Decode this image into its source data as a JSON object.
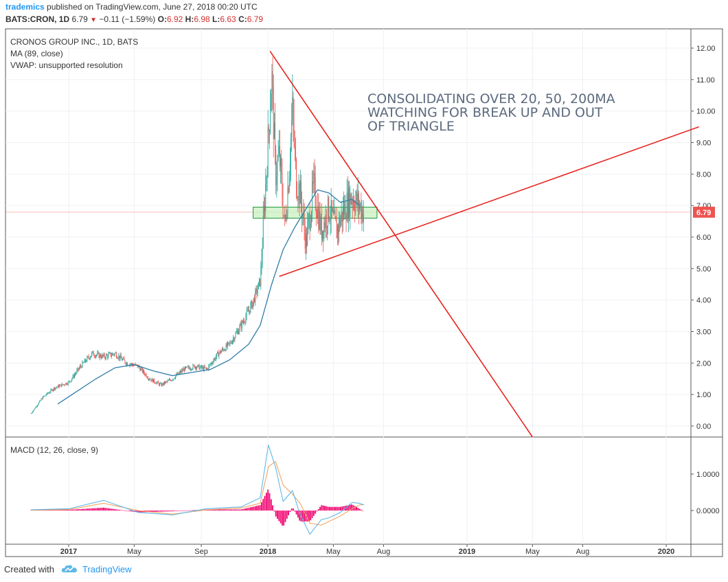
{
  "header": {
    "author": "trademics",
    "published_text": " published on TradingView.com, June 27, 2018 00:20 UTC",
    "symbol": "BATS:CRON, 1D",
    "last": "6.79",
    "change": "−0.11 (−1.59%)",
    "open_label": "O:",
    "open": "6.92",
    "high_label": "H:",
    "high": "6.98",
    "low_label": "L:",
    "low": "6.63",
    "close_label": "C:",
    "close": "6.79"
  },
  "legend": {
    "title": "CRONOS GROUP INC., 1D, BATS",
    "ma": "MA (89, close)",
    "vwap": "VWAP: unsupported resolution",
    "macd": "MACD (12, 26, close, 9)"
  },
  "annotation": {
    "lines": [
      "CONSOLIDATING OVER 20, 50, 200MA",
      "WATCHING FOR BREAK UP AND OUT",
      "OF TRIANGLE"
    ]
  },
  "price_tag": "6.79",
  "footer": {
    "created_with": "Created with",
    "brand": "TradingView"
  },
  "colors": {
    "up": "#26a69a",
    "down": "#ef5350",
    "ma": "#2f7ca8",
    "trendline": "#e8221c",
    "macd_line": "#5fb8e8",
    "signal_line": "#f4a460",
    "histogram": "#f0006e",
    "zone_fill": "#c8f0c0",
    "zone_stroke": "#1e9b3a",
    "price_tag": "#ef5350"
  },
  "chart_data": [
    {
      "type": "line",
      "title": "CRONOS GROUP INC., 1D, BATS",
      "x_axis": {
        "ticks": [
          "2017",
          "May",
          "Sep",
          "2018",
          "May",
          "Aug",
          "2019",
          "May",
          "Aug",
          "2020"
        ],
        "bold_ticks": [
          "2017",
          "2018",
          "2019",
          "2020"
        ]
      },
      "y_axis": {
        "ticks": [
          "0.00",
          "1.00",
          "2.00",
          "3.00",
          "4.00",
          "5.00",
          "6.00",
          "7.00",
          "8.00",
          "9.00",
          "10.00",
          "11.00",
          "12.00"
        ],
        "ylim": [
          -0.3,
          12.4
        ]
      },
      "series": [
        {
          "name": "Price",
          "x": [
            "2016-10-24",
            "2016-11-14",
            "2016-12-05",
            "2017-01-02",
            "2017-01-23",
            "2017-02-13",
            "2017-03-06",
            "2017-03-27",
            "2017-04-17",
            "2017-05-08",
            "2017-05-29",
            "2017-06-19",
            "2017-07-10",
            "2017-07-31",
            "2017-08-21",
            "2017-09-11",
            "2017-10-02",
            "2017-10-23",
            "2017-11-13",
            "2017-12-04",
            "2017-12-18",
            "2018-01-02",
            "2018-01-08",
            "2018-01-15",
            "2018-01-22",
            "2018-02-01",
            "2018-02-08",
            "2018-02-15",
            "2018-02-22",
            "2018-03-01",
            "2018-03-12",
            "2018-03-26",
            "2018-04-09",
            "2018-04-23",
            "2018-05-07",
            "2018-05-21",
            "2018-06-04",
            "2018-06-18",
            "2018-06-26"
          ],
          "values": [
            0.4,
            0.9,
            1.2,
            1.4,
            1.9,
            2.3,
            2.2,
            2.3,
            2.0,
            1.9,
            1.5,
            1.3,
            1.5,
            1.8,
            1.9,
            1.8,
            2.3,
            2.6,
            3.2,
            3.9,
            4.6,
            9.2,
            11.2,
            8.0,
            8.6,
            6.3,
            7.9,
            10.0,
            7.8,
            7.4,
            5.8,
            7.6,
            6.2,
            6.9,
            6.2,
            6.9,
            7.3,
            7.0,
            6.79
          ]
        },
        {
          "name": "MA (89, close)",
          "x": [
            "2016-12-12",
            "2017-01-16",
            "2017-02-20",
            "2017-03-27",
            "2017-05-01",
            "2017-06-05",
            "2017-07-10",
            "2017-08-14",
            "2017-09-18",
            "2017-10-23",
            "2017-11-27",
            "2017-12-18",
            "2018-01-08",
            "2018-01-29",
            "2018-02-19",
            "2018-03-12",
            "2018-04-02",
            "2018-04-23",
            "2018-05-14",
            "2018-06-04",
            "2018-06-18"
          ],
          "values": [
            0.7,
            1.1,
            1.5,
            1.85,
            1.95,
            1.75,
            1.6,
            1.7,
            1.8,
            2.1,
            2.6,
            3.2,
            4.5,
            5.6,
            6.3,
            6.9,
            7.5,
            7.4,
            7.1,
            7.2,
            7.0
          ]
        }
      ],
      "annotations": {
        "support_zone": {
          "from": "2017-12-05",
          "to": "2018-07-20",
          "low": 6.6,
          "high": 6.95
        },
        "descending_trendline": {
          "from": [
            "2018-01-05",
            11.9
          ],
          "to": [
            "2019-05-01",
            -0.35
          ]
        },
        "ascending_trendline": {
          "from": [
            "2018-01-22",
            4.75
          ],
          "to": [
            "2020-03-01",
            9.5
          ]
        },
        "last_price": 6.79
      }
    },
    {
      "type": "line",
      "title": "MACD (12, 26, close, 9)",
      "y_axis": {
        "ticks": [
          "0.0000",
          "1.0000"
        ]
      },
      "series": [
        {
          "name": "MACD",
          "x": [
            "2016-10-24",
            "2017-01-02",
            "2017-03-06",
            "2017-05-08",
            "2017-07-10",
            "2017-09-11",
            "2017-11-13",
            "2017-12-18",
            "2018-01-02",
            "2018-01-15",
            "2018-01-29",
            "2018-02-15",
            "2018-03-01",
            "2018-03-19",
            "2018-04-09",
            "2018-04-23",
            "2018-05-14",
            "2018-06-04",
            "2018-06-18",
            "2018-06-26"
          ],
          "values": [
            0.02,
            0.05,
            0.28,
            -0.05,
            -0.12,
            0.05,
            0.1,
            0.35,
            1.8,
            1.2,
            0.25,
            0.55,
            -0.1,
            -0.65,
            -0.25,
            -0.2,
            -0.05,
            0.22,
            0.2,
            0.15
          ]
        },
        {
          "name": "Signal",
          "x": [
            "2016-10-24",
            "2017-01-02",
            "2017-03-06",
            "2017-05-08",
            "2017-07-10",
            "2017-09-11",
            "2017-11-13",
            "2017-12-18",
            "2018-01-02",
            "2018-01-15",
            "2018-01-29",
            "2018-02-15",
            "2018-03-01",
            "2018-03-19",
            "2018-04-09",
            "2018-04-23",
            "2018-05-14",
            "2018-06-04",
            "2018-06-18",
            "2018-06-26"
          ],
          "values": [
            0.01,
            0.03,
            0.2,
            0.0,
            -0.1,
            0.02,
            0.07,
            0.2,
            1.2,
            1.35,
            0.7,
            0.45,
            0.2,
            -0.35,
            -0.4,
            -0.3,
            -0.15,
            0.05,
            0.15,
            0.17
          ]
        }
      ]
    }
  ]
}
